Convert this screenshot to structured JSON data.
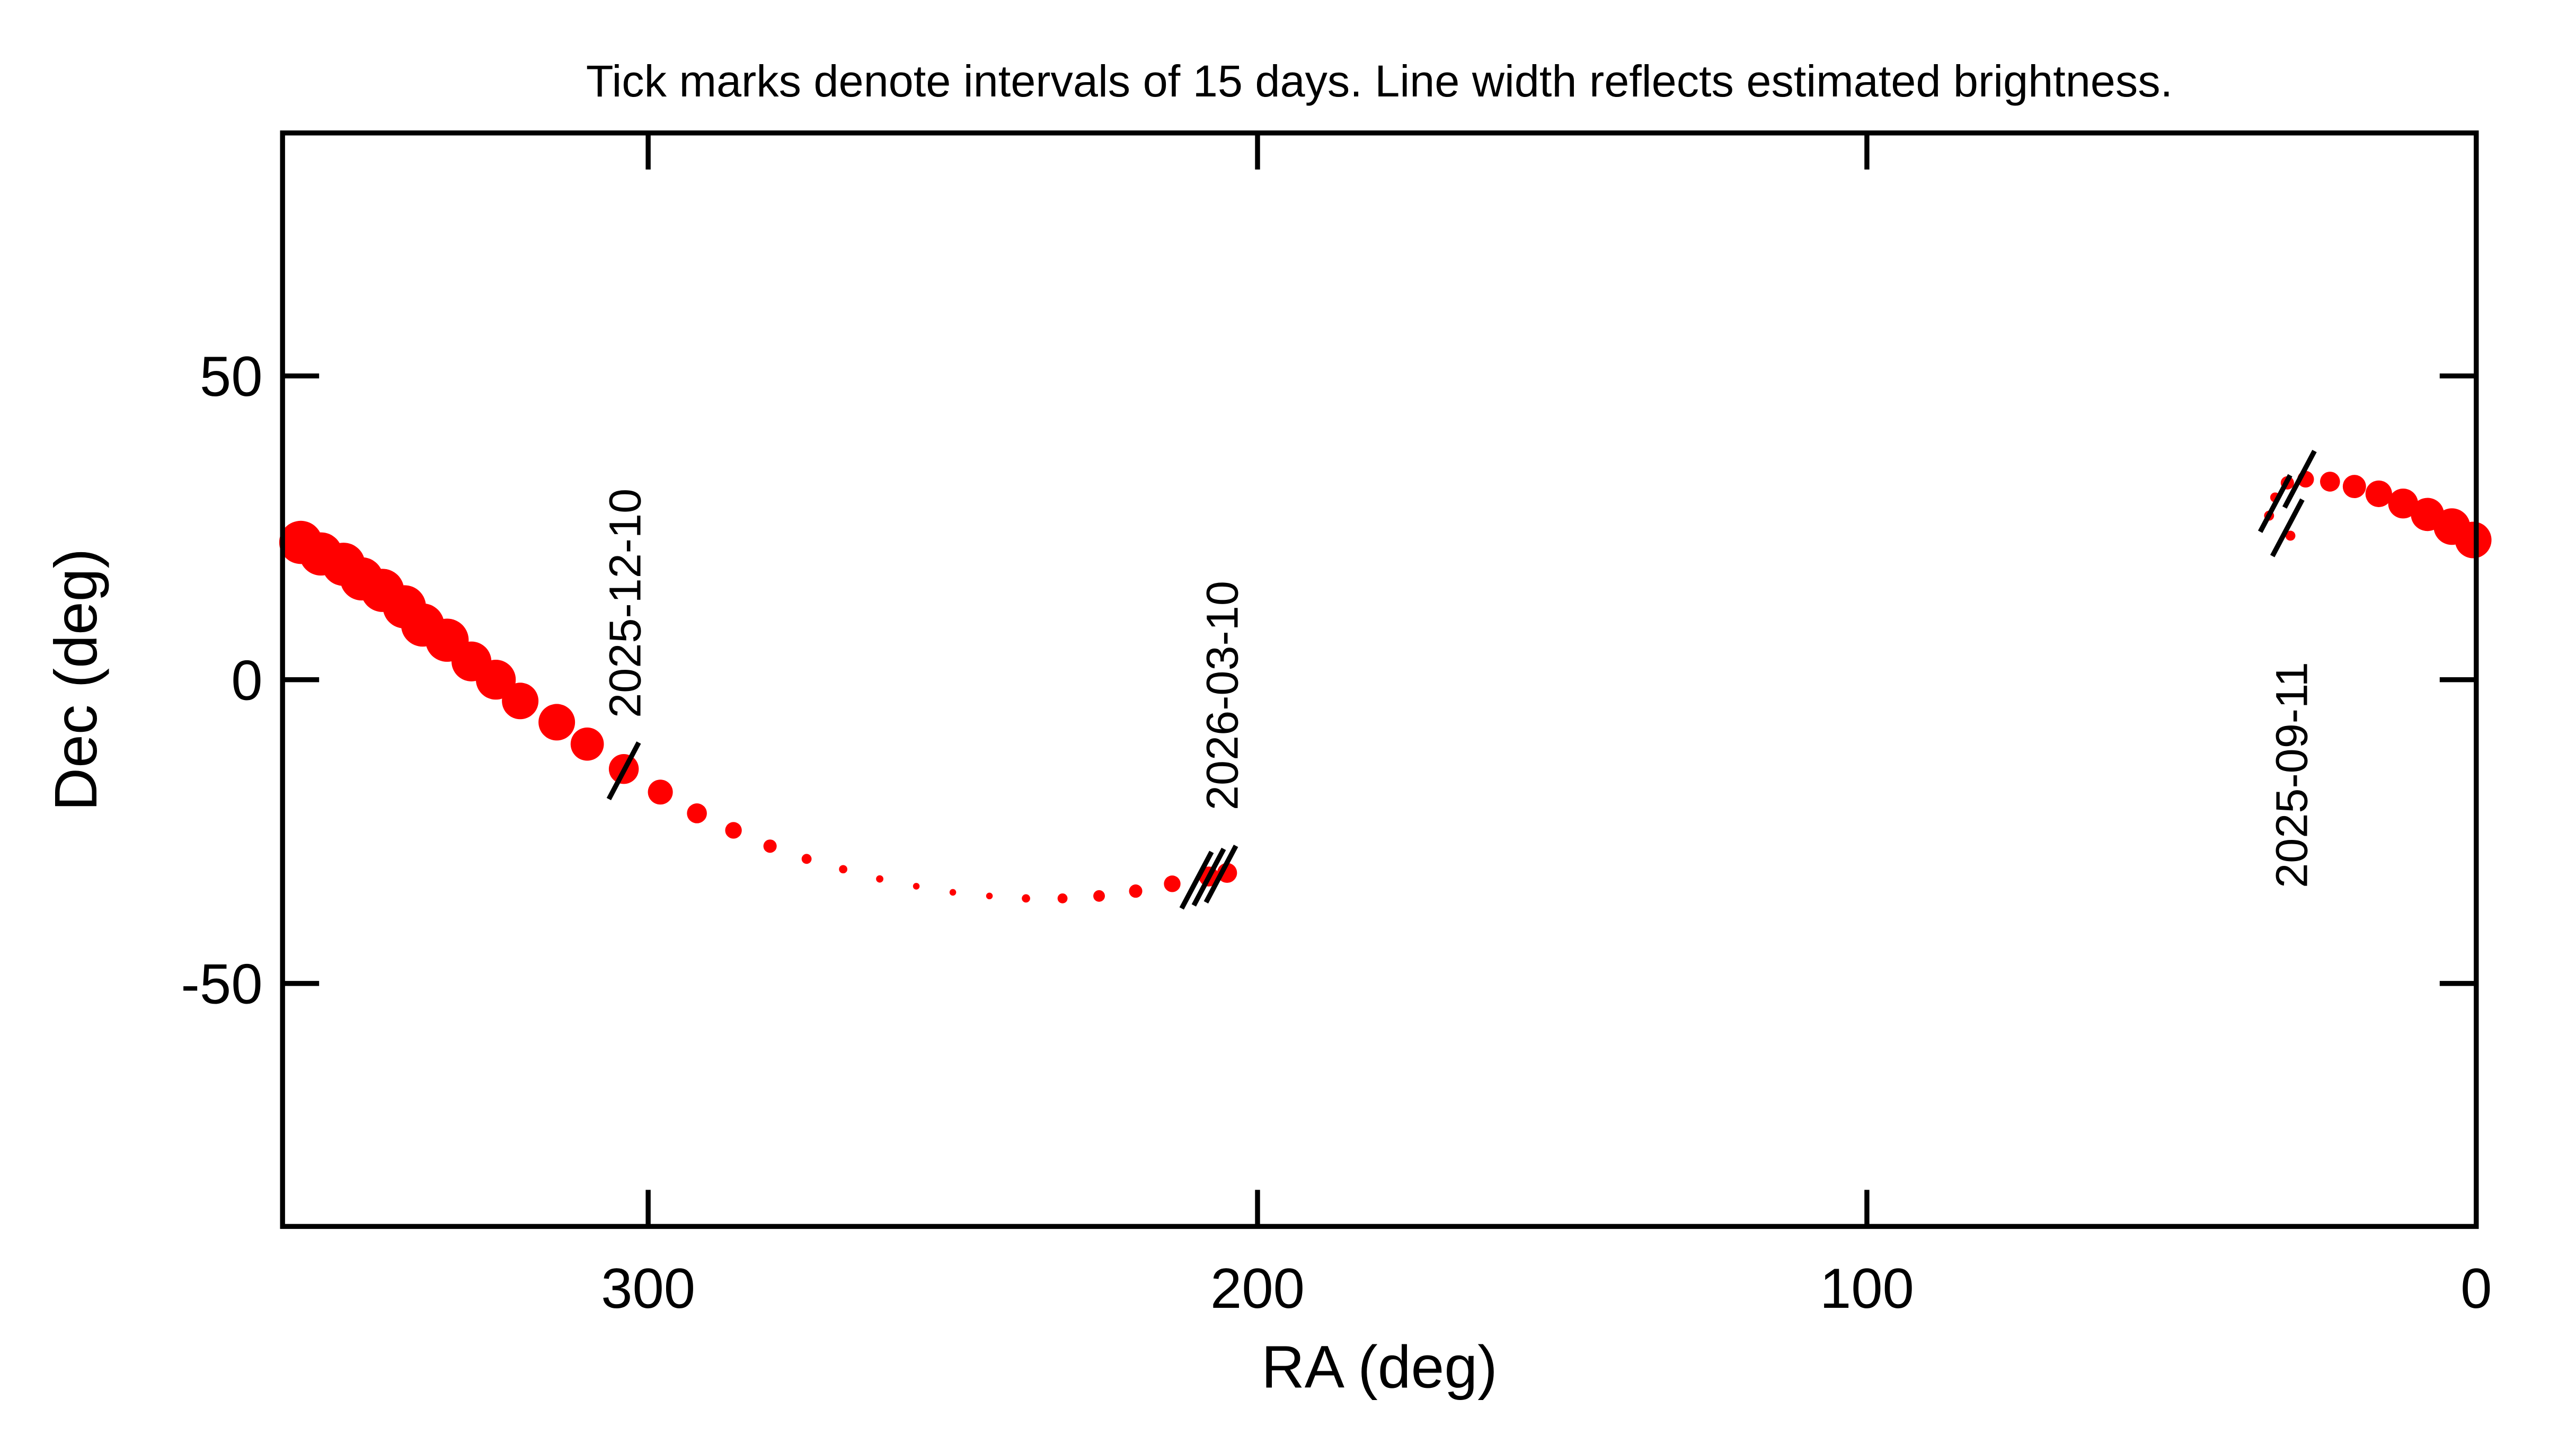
{
  "chart_data": {
    "type": "scatter",
    "title": "Tick marks denote intervals of 15 days.  Line width reflects estimated brightness.",
    "x_label": "RA (deg)",
    "y_label": "Dec (deg)",
    "xlim": [
      360,
      0
    ],
    "ylim": [
      -90,
      90
    ],
    "xticks": [
      300,
      200,
      100,
      0
    ],
    "yticks": [
      -50,
      0,
      50
    ],
    "color": "#ff0000",
    "series": [
      {
        "x": [
          30.5,
          34,
          33,
          31,
          28,
          24,
          20,
          16,
          12,
          8,
          4,
          0.5,
          null,
          357,
          353.7,
          350,
          347,
          343.6,
          340,
          337,
          333,
          329,
          325,
          321,
          315,
          310,
          304,
          298,
          292,
          286,
          280,
          274,
          268,
          262,
          256,
          250,
          244,
          238,
          232,
          226,
          220,
          214,
          208,
          205
        ],
        "y": [
          23.7,
          27,
          30,
          32.4,
          33,
          32.6,
          31.8,
          30.6,
          29,
          27.2,
          25.2,
          23,
          null,
          22.6,
          20.7,
          19,
          16.6,
          14.7,
          12,
          9,
          6.5,
          3,
          0,
          -3.5,
          -7,
          -10.6,
          -14.7,
          -18.5,
          -22,
          -24.8,
          -27.4,
          -29.5,
          -31.2,
          -32.8,
          -34,
          -35,
          -35.6,
          -36,
          -36,
          -35.6,
          -34.8,
          -33.6,
          -32.4,
          -31.8
        ],
        "sizes": [
          3,
          3,
          3,
          4,
          5,
          6,
          7,
          8,
          9,
          10,
          11,
          11,
          null,
          13,
          13,
          13,
          13,
          13,
          13,
          13,
          13,
          12,
          12,
          11,
          11,
          10,
          9,
          7.5,
          6,
          5,
          4,
          3,
          2.5,
          2.2,
          2,
          2,
          2,
          2.5,
          3,
          3.5,
          4,
          5,
          6,
          6
        ]
      }
    ],
    "date_ticks": {
      "x": [
        31,
        33,
        29,
        304,
        210,
        208,
        206
      ],
      "y": [
        25,
        29,
        33,
        -15,
        -33,
        -32.5,
        -32
      ]
    },
    "annotations": [
      {
        "text": "2025-12-10",
        "x": 304,
        "y": -6.3
      },
      {
        "text": "2026-03-10",
        "x": 206,
        "y": -21.5
      },
      {
        "text": "2025-09-11",
        "x": 30.5,
        "y": -34.3
      }
    ]
  }
}
